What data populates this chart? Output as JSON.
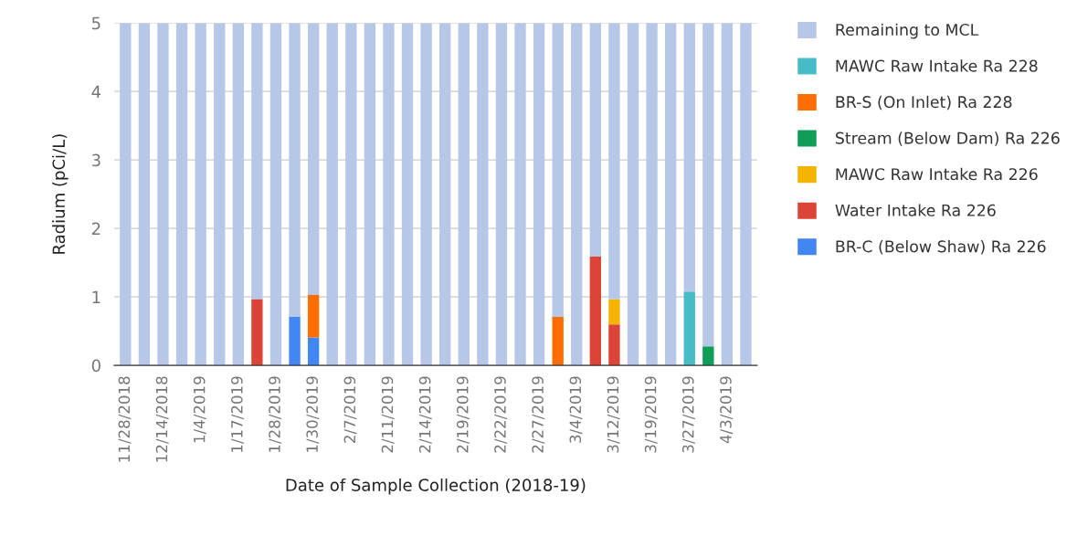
{
  "chart_data": {
    "type": "bar",
    "stacked": true,
    "xlabel": "Date of Sample Collection (2018-19)",
    "ylabel": "Radium (pCi/L)",
    "categories": [
      "11/28/2018",
      null,
      "12/14/2018",
      null,
      "1/4/2019",
      null,
      "1/17/2019",
      null,
      "1/28/2019",
      null,
      "1/30/2019",
      null,
      "2/7/2019",
      null,
      "2/11/2019",
      null,
      "2/14/2019",
      null,
      "2/19/2019",
      null,
      "2/22/2019",
      null,
      "2/27/2019",
      null,
      "3/4/2019",
      null,
      "3/12/2019",
      null,
      "3/19/2019",
      null,
      "3/27/2019",
      null,
      "4/3/2019",
      null
    ],
    "ylim": [
      0,
      5
    ],
    "yticks": [
      0,
      1,
      2,
      3,
      4,
      5
    ],
    "grid": "y",
    "legend": "right",
    "series": [
      {
        "name": "BR-C (Below Shaw) Ra 226",
        "color": "#4285f4",
        "values": [
          0,
          0,
          0,
          0,
          0,
          0,
          0,
          0,
          0,
          0.71,
          0.41,
          0,
          0,
          0,
          0,
          0,
          0,
          0,
          0,
          0,
          0,
          0,
          0,
          0,
          0,
          0,
          0,
          0,
          0,
          0,
          0,
          0,
          0,
          0
        ]
      },
      {
        "name": "Water Intake Ra 226",
        "color": "#db4437",
        "values": [
          0,
          0,
          0,
          0,
          0,
          0,
          0,
          0.97,
          0,
          0,
          0,
          0,
          0,
          0,
          0,
          0,
          0,
          0,
          0,
          0,
          0,
          0,
          0,
          0,
          0,
          1.59,
          0.6,
          0,
          0,
          0,
          0,
          0,
          0,
          0
        ]
      },
      {
        "name": "MAWC Raw Intake Ra 226",
        "color": "#f4b400",
        "values": [
          0,
          0,
          0,
          0,
          0,
          0,
          0,
          0,
          0,
          0,
          0,
          0,
          0,
          0,
          0,
          0,
          0,
          0,
          0,
          0,
          0,
          0,
          0,
          0,
          0,
          0,
          0.37,
          0,
          0,
          0,
          0,
          0,
          0,
          0
        ]
      },
      {
        "name": "Stream (Below Dam) Ra 226",
        "color": "#0f9d58",
        "values": [
          0,
          0,
          0,
          0,
          0,
          0,
          0,
          0,
          0,
          0,
          0,
          0,
          0,
          0,
          0,
          0,
          0,
          0,
          0,
          0,
          0,
          0,
          0,
          0,
          0,
          0,
          0,
          0,
          0,
          0,
          0,
          0.28,
          0,
          0
        ]
      },
      {
        "name": "BR-S (On Inlet) Ra 228",
        "color": "#ff6d01",
        "values": [
          0,
          0,
          0,
          0,
          0,
          0,
          0,
          0,
          0,
          0,
          0.62,
          0,
          0,
          0,
          0,
          0,
          0,
          0,
          0,
          0,
          0,
          0,
          0,
          0.71,
          0,
          0,
          0,
          0,
          0,
          0,
          0,
          0,
          0,
          0
        ]
      },
      {
        "name": "MAWC Raw Intake Ra 228",
        "color": "#46bdc6",
        "values": [
          0,
          0,
          0,
          0,
          0,
          0,
          0,
          0,
          0,
          0,
          0,
          0,
          0,
          0,
          0,
          0,
          0,
          0,
          0,
          0,
          0,
          0,
          0,
          0,
          0,
          0,
          0,
          0,
          0,
          0,
          1.08,
          0,
          0,
          0
        ]
      },
      {
        "name": "Remaining to MCL",
        "color": "#b7c7e8",
        "values": [
          5,
          5,
          5,
          5,
          5,
          5,
          5,
          4.03,
          5,
          4.29,
          3.97,
          5,
          5,
          5,
          5,
          5,
          5,
          5,
          5,
          5,
          5,
          5,
          5,
          4.29,
          5,
          3.41,
          4.03,
          5,
          5,
          5,
          3.92,
          4.72,
          5,
          5
        ]
      }
    ]
  }
}
